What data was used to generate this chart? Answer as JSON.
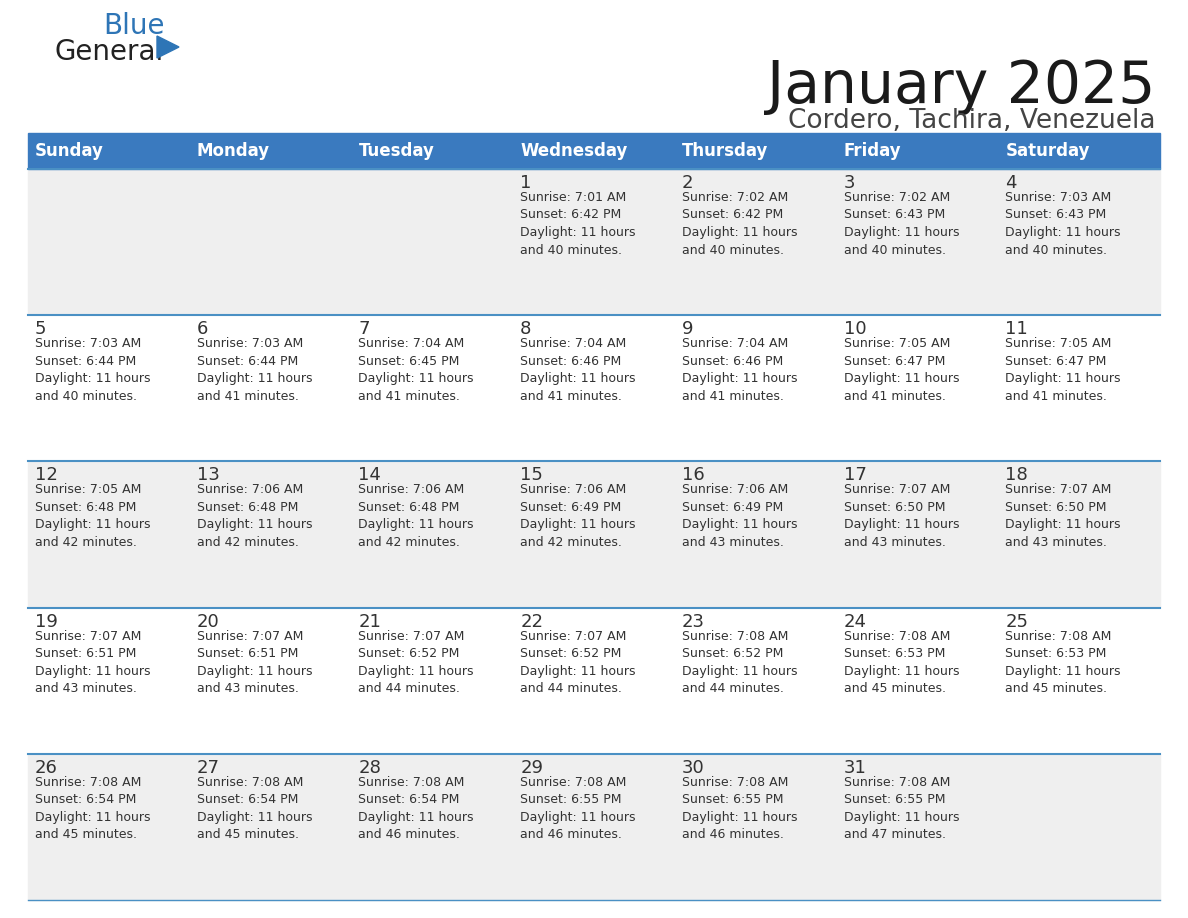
{
  "title": "January 2025",
  "subtitle": "Cordero, Tachira, Venezuela",
  "header_color": "#3a7abf",
  "header_text_color": "#ffffff",
  "cell_bg_odd": "#efefef",
  "cell_bg_even": "#ffffff",
  "text_color": "#333333",
  "line_color": "#4a90c4",
  "days_of_week": [
    "Sunday",
    "Monday",
    "Tuesday",
    "Wednesday",
    "Thursday",
    "Friday",
    "Saturday"
  ],
  "calendar": [
    [
      {
        "day": "",
        "info": ""
      },
      {
        "day": "",
        "info": ""
      },
      {
        "day": "",
        "info": ""
      },
      {
        "day": "1",
        "info": "Sunrise: 7:01 AM\nSunset: 6:42 PM\nDaylight: 11 hours\nand 40 minutes."
      },
      {
        "day": "2",
        "info": "Sunrise: 7:02 AM\nSunset: 6:42 PM\nDaylight: 11 hours\nand 40 minutes."
      },
      {
        "day": "3",
        "info": "Sunrise: 7:02 AM\nSunset: 6:43 PM\nDaylight: 11 hours\nand 40 minutes."
      },
      {
        "day": "4",
        "info": "Sunrise: 7:03 AM\nSunset: 6:43 PM\nDaylight: 11 hours\nand 40 minutes."
      }
    ],
    [
      {
        "day": "5",
        "info": "Sunrise: 7:03 AM\nSunset: 6:44 PM\nDaylight: 11 hours\nand 40 minutes."
      },
      {
        "day": "6",
        "info": "Sunrise: 7:03 AM\nSunset: 6:44 PM\nDaylight: 11 hours\nand 41 minutes."
      },
      {
        "day": "7",
        "info": "Sunrise: 7:04 AM\nSunset: 6:45 PM\nDaylight: 11 hours\nand 41 minutes."
      },
      {
        "day": "8",
        "info": "Sunrise: 7:04 AM\nSunset: 6:46 PM\nDaylight: 11 hours\nand 41 minutes."
      },
      {
        "day": "9",
        "info": "Sunrise: 7:04 AM\nSunset: 6:46 PM\nDaylight: 11 hours\nand 41 minutes."
      },
      {
        "day": "10",
        "info": "Sunrise: 7:05 AM\nSunset: 6:47 PM\nDaylight: 11 hours\nand 41 minutes."
      },
      {
        "day": "11",
        "info": "Sunrise: 7:05 AM\nSunset: 6:47 PM\nDaylight: 11 hours\nand 41 minutes."
      }
    ],
    [
      {
        "day": "12",
        "info": "Sunrise: 7:05 AM\nSunset: 6:48 PM\nDaylight: 11 hours\nand 42 minutes."
      },
      {
        "day": "13",
        "info": "Sunrise: 7:06 AM\nSunset: 6:48 PM\nDaylight: 11 hours\nand 42 minutes."
      },
      {
        "day": "14",
        "info": "Sunrise: 7:06 AM\nSunset: 6:48 PM\nDaylight: 11 hours\nand 42 minutes."
      },
      {
        "day": "15",
        "info": "Sunrise: 7:06 AM\nSunset: 6:49 PM\nDaylight: 11 hours\nand 42 minutes."
      },
      {
        "day": "16",
        "info": "Sunrise: 7:06 AM\nSunset: 6:49 PM\nDaylight: 11 hours\nand 43 minutes."
      },
      {
        "day": "17",
        "info": "Sunrise: 7:07 AM\nSunset: 6:50 PM\nDaylight: 11 hours\nand 43 minutes."
      },
      {
        "day": "18",
        "info": "Sunrise: 7:07 AM\nSunset: 6:50 PM\nDaylight: 11 hours\nand 43 minutes."
      }
    ],
    [
      {
        "day": "19",
        "info": "Sunrise: 7:07 AM\nSunset: 6:51 PM\nDaylight: 11 hours\nand 43 minutes."
      },
      {
        "day": "20",
        "info": "Sunrise: 7:07 AM\nSunset: 6:51 PM\nDaylight: 11 hours\nand 43 minutes."
      },
      {
        "day": "21",
        "info": "Sunrise: 7:07 AM\nSunset: 6:52 PM\nDaylight: 11 hours\nand 44 minutes."
      },
      {
        "day": "22",
        "info": "Sunrise: 7:07 AM\nSunset: 6:52 PM\nDaylight: 11 hours\nand 44 minutes."
      },
      {
        "day": "23",
        "info": "Sunrise: 7:08 AM\nSunset: 6:52 PM\nDaylight: 11 hours\nand 44 minutes."
      },
      {
        "day": "24",
        "info": "Sunrise: 7:08 AM\nSunset: 6:53 PM\nDaylight: 11 hours\nand 45 minutes."
      },
      {
        "day": "25",
        "info": "Sunrise: 7:08 AM\nSunset: 6:53 PM\nDaylight: 11 hours\nand 45 minutes."
      }
    ],
    [
      {
        "day": "26",
        "info": "Sunrise: 7:08 AM\nSunset: 6:54 PM\nDaylight: 11 hours\nand 45 minutes."
      },
      {
        "day": "27",
        "info": "Sunrise: 7:08 AM\nSunset: 6:54 PM\nDaylight: 11 hours\nand 45 minutes."
      },
      {
        "day": "28",
        "info": "Sunrise: 7:08 AM\nSunset: 6:54 PM\nDaylight: 11 hours\nand 46 minutes."
      },
      {
        "day": "29",
        "info": "Sunrise: 7:08 AM\nSunset: 6:55 PM\nDaylight: 11 hours\nand 46 minutes."
      },
      {
        "day": "30",
        "info": "Sunrise: 7:08 AM\nSunset: 6:55 PM\nDaylight: 11 hours\nand 46 minutes."
      },
      {
        "day": "31",
        "info": "Sunrise: 7:08 AM\nSunset: 6:55 PM\nDaylight: 11 hours\nand 47 minutes."
      },
      {
        "day": "",
        "info": ""
      }
    ]
  ],
  "logo_general_color": "#222222",
  "logo_blue_color": "#2e75b6",
  "logo_triangle_color": "#2e75b6",
  "title_fontsize": 42,
  "subtitle_fontsize": 19,
  "header_fontsize": 12,
  "day_num_fontsize": 13,
  "info_fontsize": 9
}
